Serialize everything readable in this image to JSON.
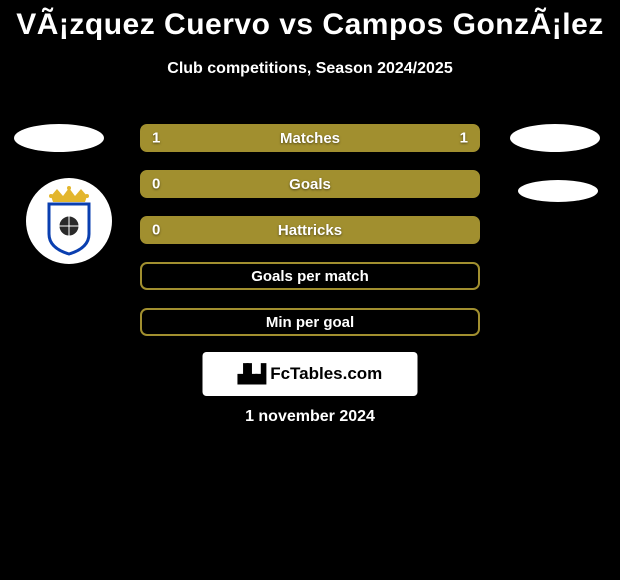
{
  "title": "VÃ¡zquez Cuervo vs Campos GonzÃ¡lez",
  "subtitle": "Club competitions, Season 2024/2025",
  "bar_color": "#a18f2f",
  "rows": [
    {
      "label": "Matches",
      "left": "1",
      "right": "1",
      "filled": true
    },
    {
      "label": "Goals",
      "left": "0",
      "right": "",
      "filled": true
    },
    {
      "label": "Hattricks",
      "left": "0",
      "right": "",
      "filled": true
    },
    {
      "label": "Goals per match",
      "left": "",
      "right": "",
      "filled": false
    },
    {
      "label": "Min per goal",
      "left": "",
      "right": "",
      "filled": false
    }
  ],
  "brand": "FcTables.com",
  "date": "1 november 2024",
  "crest": {
    "crown_color": "#e3b62d",
    "shield_colors": [
      "#0a3fb0",
      "#ffffff"
    ],
    "ball_color": "#2a2a2a"
  }
}
